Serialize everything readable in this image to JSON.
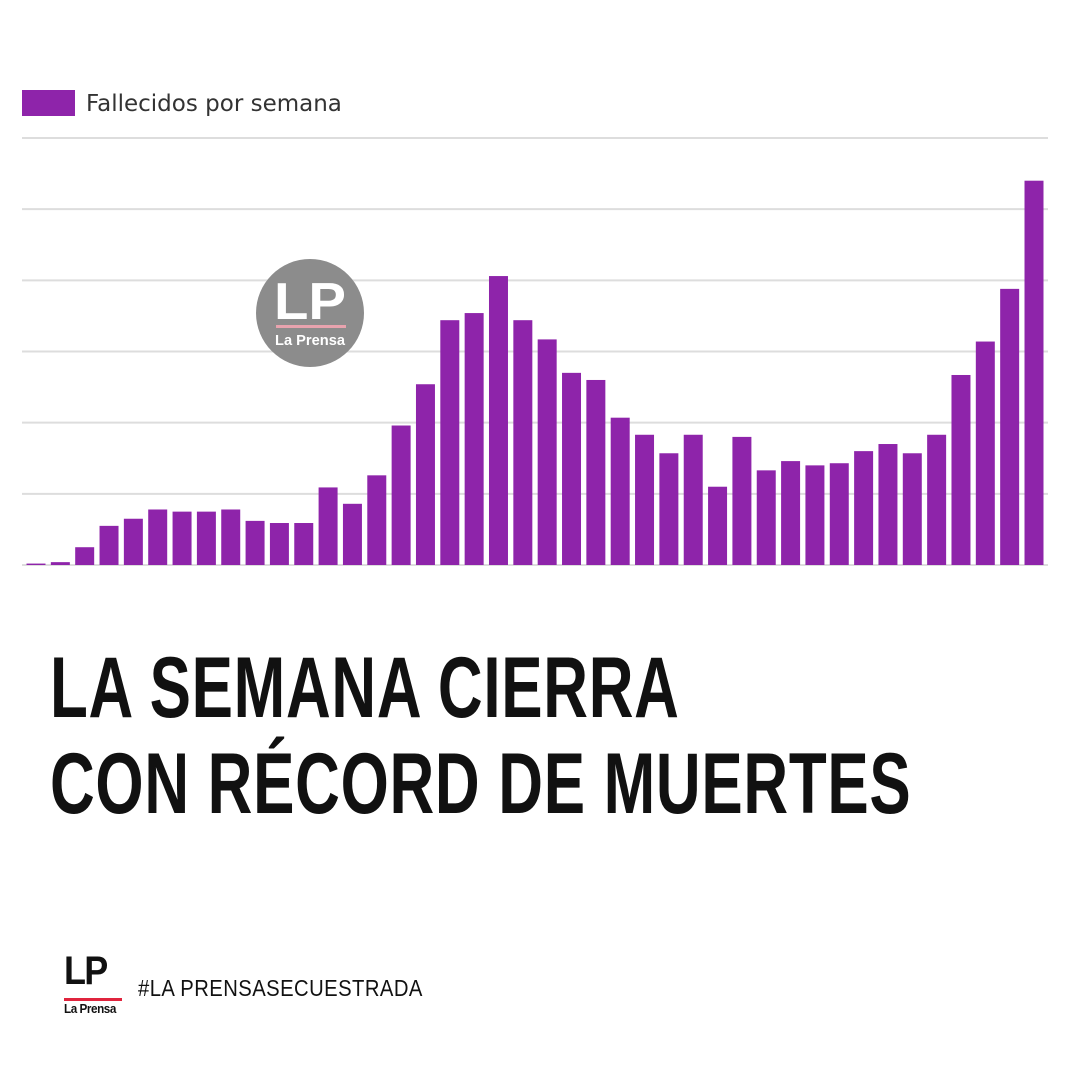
{
  "chart_data": {
    "type": "bar",
    "title": "",
    "xlabel": "",
    "ylabel": "",
    "legend": {
      "placement": "top-left",
      "label": "Fallecidos por semana"
    },
    "grid": true,
    "ylim": [
      0,
      6
    ],
    "series": [
      {
        "name": "Fallecidos por semana",
        "color": "#8e24aa",
        "values": [
          0.02,
          0.04,
          0.25,
          0.55,
          0.65,
          0.78,
          0.75,
          0.75,
          0.78,
          0.62,
          0.59,
          0.59,
          1.09,
          0.86,
          1.26,
          1.96,
          2.54,
          3.44,
          3.54,
          4.06,
          3.44,
          3.17,
          2.7,
          2.6,
          2.07,
          1.83,
          1.57,
          1.83,
          1.1,
          1.8,
          1.33,
          1.46,
          1.4,
          1.43,
          1.6,
          1.7,
          1.57,
          1.83,
          2.67,
          3.14,
          3.88,
          5.4
        ]
      }
    ]
  },
  "headline": {
    "line1": "LA SEMANA CIERRA",
    "line2": "CON RÉCORD DE MUERTES"
  },
  "footer": {
    "logo_text": "LP",
    "logo_name": "La Prensa",
    "hashtag": "#LA PRENSASECUESTRADA"
  },
  "watermark": {
    "logo_text": "LP",
    "logo_name": "La Prensa"
  },
  "colors": {
    "bar": "#8e24aa",
    "grid": "#dddddd",
    "accent": "#e0243d",
    "watermark": "#8c8c8c"
  }
}
